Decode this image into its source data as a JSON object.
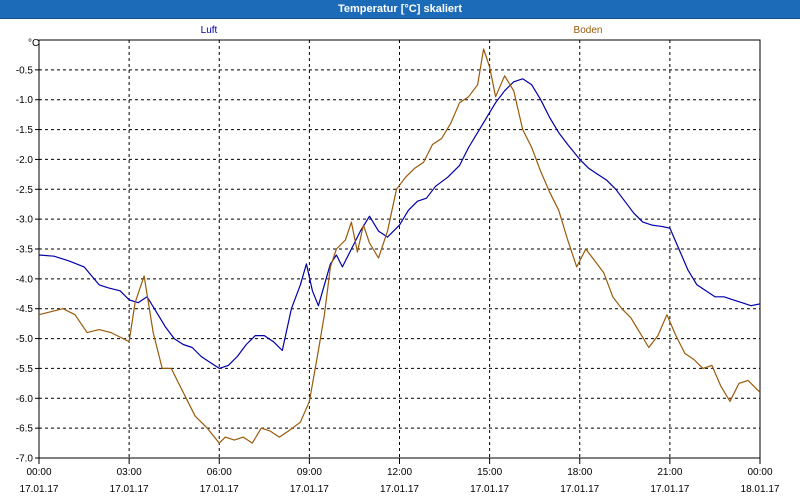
{
  "window": {
    "title": "Temperatur [°C] skaliert"
  },
  "chart_data": {
    "type": "line",
    "title": "Temperatur [°C] skaliert",
    "ylabel": "°C",
    "xlabel": "",
    "ylim": [
      -7.0,
      -0.0
    ],
    "xlim_hours": [
      0,
      24
    ],
    "grid": true,
    "legend_placement": "top",
    "y_ticks": [
      "-0.5",
      "-1.0",
      "-1.5",
      "-2.0",
      "-2.5",
      "-3.0",
      "-3.5",
      "-4.0",
      "-4.5",
      "-5.0",
      "-5.5",
      "-6.0",
      "-6.5",
      "-7.0"
    ],
    "x_ticks": [
      {
        "time": "00:00",
        "date": "17.01.17"
      },
      {
        "time": "03:00",
        "date": "17.01.17"
      },
      {
        "time": "06:00",
        "date": "17.01.17"
      },
      {
        "time": "09:00",
        "date": "17.01.17"
      },
      {
        "time": "12:00",
        "date": "17.01.17"
      },
      {
        "time": "15:00",
        "date": "17.01.17"
      },
      {
        "time": "18:00",
        "date": "17.01.17"
      },
      {
        "time": "21:00",
        "date": "17.01.17"
      },
      {
        "time": "00:00",
        "date": "18.01.17"
      }
    ],
    "series": [
      {
        "name": "Luft",
        "color": "#0000a8",
        "x": [
          0,
          0.5,
          1.0,
          1.5,
          2.0,
          2.3,
          2.7,
          3.0,
          3.3,
          3.6,
          3.9,
          4.2,
          4.5,
          4.8,
          5.1,
          5.4,
          5.7,
          6.0,
          6.3,
          6.6,
          6.9,
          7.2,
          7.5,
          7.8,
          8.1,
          8.4,
          8.7,
          8.9,
          9.1,
          9.3,
          9.5,
          9.7,
          9.9,
          10.1,
          10.4,
          10.7,
          11.0,
          11.3,
          11.6,
          12.0,
          12.3,
          12.6,
          12.9,
          13.2,
          13.6,
          14.0,
          14.3,
          14.6,
          14.9,
          15.2,
          15.5,
          15.8,
          16.1,
          16.4,
          16.7,
          17.0,
          17.3,
          17.6,
          18.0,
          18.3,
          18.6,
          18.9,
          19.2,
          19.5,
          19.8,
          20.1,
          20.4,
          20.7,
          21.0,
          21.3,
          21.6,
          21.9,
          22.2,
          22.5,
          22.8,
          23.1,
          23.4,
          23.7,
          24.0
        ],
        "values": [
          -3.6,
          -3.62,
          -3.7,
          -3.8,
          -4.1,
          -4.15,
          -4.2,
          -4.35,
          -4.4,
          -4.3,
          -4.55,
          -4.8,
          -5.0,
          -5.1,
          -5.15,
          -5.3,
          -5.4,
          -5.5,
          -5.45,
          -5.3,
          -5.1,
          -4.95,
          -4.95,
          -5.05,
          -5.2,
          -4.5,
          -4.1,
          -3.75,
          -4.2,
          -4.45,
          -4.1,
          -3.75,
          -3.6,
          -3.8,
          -3.5,
          -3.2,
          -2.95,
          -3.2,
          -3.3,
          -3.1,
          -2.85,
          -2.7,
          -2.65,
          -2.45,
          -2.3,
          -2.1,
          -1.8,
          -1.55,
          -1.3,
          -1.05,
          -0.85,
          -0.7,
          -0.65,
          -0.75,
          -1.0,
          -1.3,
          -1.55,
          -1.75,
          -2.0,
          -2.15,
          -2.25,
          -2.35,
          -2.5,
          -2.7,
          -2.9,
          -3.05,
          -3.1,
          -3.12,
          -3.15,
          -3.5,
          -3.85,
          -4.1,
          -4.2,
          -4.3,
          -4.3,
          -4.35,
          -4.4,
          -4.45,
          -4.42
        ]
      },
      {
        "name": "Boden",
        "color": "#9a5a0a",
        "x": [
          0,
          0.4,
          0.8,
          1.2,
          1.6,
          2.0,
          2.4,
          2.8,
          3.0,
          3.2,
          3.5,
          3.8,
          4.1,
          4.4,
          4.8,
          5.2,
          5.6,
          6.0,
          6.2,
          6.5,
          6.8,
          7.1,
          7.4,
          7.7,
          8.0,
          8.3,
          8.7,
          9.0,
          9.3,
          9.5,
          9.7,
          9.9,
          10.2,
          10.4,
          10.6,
          10.8,
          11.0,
          11.3,
          11.6,
          11.9,
          12.2,
          12.5,
          12.8,
          13.1,
          13.4,
          13.7,
          14.0,
          14.3,
          14.6,
          14.8,
          15.0,
          15.2,
          15.5,
          15.8,
          16.1,
          16.4,
          16.7,
          17.0,
          17.3,
          17.6,
          17.9,
          18.2,
          18.5,
          18.8,
          19.1,
          19.4,
          19.7,
          20.0,
          20.3,
          20.6,
          20.9,
          21.2,
          21.5,
          21.8,
          22.1,
          22.4,
          22.7,
          23.0,
          23.3,
          23.6,
          23.9,
          24.0
        ],
        "values": [
          -4.6,
          -4.55,
          -4.5,
          -4.6,
          -4.9,
          -4.85,
          -4.9,
          -5.0,
          -5.05,
          -4.4,
          -3.95,
          -4.9,
          -5.5,
          -5.5,
          -5.9,
          -6.3,
          -6.5,
          -6.75,
          -6.65,
          -6.7,
          -6.65,
          -6.75,
          -6.5,
          -6.55,
          -6.65,
          -6.55,
          -6.4,
          -6.05,
          -5.2,
          -4.6,
          -3.8,
          -3.5,
          -3.35,
          -3.05,
          -3.55,
          -3.1,
          -3.4,
          -3.65,
          -3.2,
          -2.5,
          -2.3,
          -2.15,
          -2.05,
          -1.75,
          -1.65,
          -1.4,
          -1.05,
          -0.95,
          -0.75,
          -0.15,
          -0.45,
          -0.95,
          -0.6,
          -0.85,
          -1.5,
          -1.8,
          -2.2,
          -2.55,
          -2.85,
          -3.35,
          -3.8,
          -3.5,
          -3.7,
          -3.9,
          -4.3,
          -4.5,
          -4.65,
          -4.9,
          -5.15,
          -4.95,
          -4.6,
          -4.95,
          -5.25,
          -5.35,
          -5.5,
          -5.45,
          -5.8,
          -6.05,
          -5.75,
          -5.7,
          -5.85,
          -5.9
        ]
      }
    ]
  }
}
